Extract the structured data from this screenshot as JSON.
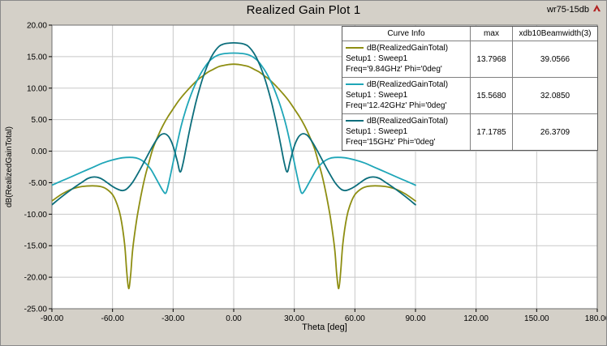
{
  "header": {
    "project_label": "wr75-15db"
  },
  "legend": {
    "curve_info_header": "Curve Info",
    "max_header": "max",
    "beamwidth_header": "xdb10Beamwidth(3)"
  },
  "chart_data": {
    "type": "line",
    "title": "Realized Gain Plot 1",
    "xlabel": "Theta [deg]",
    "ylabel": "dB(RealizedGainTotal)",
    "xlim": [
      -90,
      180
    ],
    "ylim": [
      -25,
      20
    ],
    "grid": true,
    "legend_position": "top-right",
    "x_ticks": [
      -90,
      -60,
      -30,
      0,
      30,
      60,
      90,
      120,
      150,
      180
    ],
    "x_tick_labels": [
      "-90.00",
      "-60.00",
      "-30.00",
      "0.00",
      "30.00",
      "60.00",
      "90.00",
      "120.00",
      "150.00",
      "180.00"
    ],
    "y_ticks": [
      20,
      15,
      10,
      5,
      0,
      -5,
      -10,
      -15,
      -20,
      -25
    ],
    "y_tick_labels": [
      "20.00",
      "15.00",
      "10.00",
      "5.00",
      "0.00",
      "-5.00",
      "-10.00",
      "-15.00",
      "-20.00",
      "-25.00"
    ],
    "colors": {
      "plot_bg": "#ffffff",
      "grid": "#c8c8c8",
      "frame_bg": "#d4d0c8",
      "axis": "#6e6e6e"
    },
    "series": [
      {
        "name": "dB(RealizedGainTotal)",
        "setup": "Setup1 : Sweep1",
        "freq": "Freq='9.84GHz' Phi='0deg'",
        "max": "13.7968",
        "beamwidth": "39.0566",
        "color": "#8e8e12",
        "mirror": true,
        "points": [
          [
            0,
            13.8
          ],
          [
            2.5,
            13.75
          ],
          [
            5,
            13.6
          ],
          [
            7.5,
            13.4
          ],
          [
            10,
            13.0
          ],
          [
            12.5,
            12.6
          ],
          [
            15,
            12.0
          ],
          [
            17.5,
            11.4
          ],
          [
            20,
            10.65
          ],
          [
            22.5,
            9.8
          ],
          [
            25,
            8.9
          ],
          [
            27.5,
            7.9
          ],
          [
            30,
            6.7
          ],
          [
            32.5,
            5.5
          ],
          [
            35,
            4.1
          ],
          [
            37.5,
            2.4
          ],
          [
            40,
            0.4
          ],
          [
            42,
            -1.8
          ],
          [
            44,
            -4.2
          ],
          [
            46,
            -7.2
          ],
          [
            48,
            -10.8
          ],
          [
            50,
            -15.5
          ],
          [
            51,
            -19.5
          ],
          [
            52,
            -21.8
          ],
          [
            53,
            -19.0
          ],
          [
            54,
            -14.8
          ],
          [
            56,
            -10.4
          ],
          [
            58,
            -8.2
          ],
          [
            60,
            -6.9
          ],
          [
            63,
            -6.0
          ],
          [
            66,
            -5.6
          ],
          [
            70,
            -5.5
          ],
          [
            75,
            -5.6
          ],
          [
            80,
            -6.0
          ],
          [
            85,
            -6.8
          ],
          [
            90,
            -7.9
          ]
        ]
      },
      {
        "name": "dB(RealizedGainTotal)",
        "setup": "Setup1 : Sweep1",
        "freq": "Freq='12.42GHz' Phi='0deg'",
        "max": "15.5680",
        "beamwidth": "32.0850",
        "color": "#1fa6b8",
        "mirror": true,
        "points": [
          [
            0,
            15.57
          ],
          [
            2,
            15.55
          ],
          [
            4,
            15.5
          ],
          [
            6,
            15.4
          ],
          [
            8,
            15.2
          ],
          [
            10,
            14.85
          ],
          [
            12,
            14.3
          ],
          [
            14,
            13.5
          ],
          [
            16,
            12.5
          ],
          [
            18,
            11.3
          ],
          [
            20,
            9.9
          ],
          [
            22,
            8.2
          ],
          [
            24,
            6.3
          ],
          [
            26,
            4.0
          ],
          [
            28,
            1.2
          ],
          [
            30,
            -1.8
          ],
          [
            32,
            -4.8
          ],
          [
            33.5,
            -6.6
          ],
          [
            35,
            -6.3
          ],
          [
            38,
            -4.6
          ],
          [
            41,
            -2.9
          ],
          [
            44,
            -1.8
          ],
          [
            47,
            -1.2
          ],
          [
            50,
            -1.0
          ],
          [
            55,
            -1.05
          ],
          [
            60,
            -1.4
          ],
          [
            65,
            -1.9
          ],
          [
            70,
            -2.6
          ],
          [
            75,
            -3.3
          ],
          [
            80,
            -4.0
          ],
          [
            85,
            -4.7
          ],
          [
            90,
            -5.4
          ]
        ]
      },
      {
        "name": "dB(RealizedGainTotal)",
        "setup": "Setup1 : Sweep1",
        "freq": "Freq='15GHz' Phi='0deg'",
        "max": "17.1785",
        "beamwidth": "26.3709",
        "color": "#0c6e7c",
        "mirror": true,
        "points": [
          [
            0,
            17.18
          ],
          [
            3,
            17.12
          ],
          [
            5,
            17.0
          ],
          [
            7,
            16.7
          ],
          [
            9,
            16.0
          ],
          [
            11,
            15.0
          ],
          [
            13,
            13.6
          ],
          [
            15,
            11.9
          ],
          [
            17,
            9.8
          ],
          [
            19,
            7.4
          ],
          [
            21,
            4.6
          ],
          [
            23,
            1.5
          ],
          [
            25,
            -1.8
          ],
          [
            26.5,
            -3.3
          ],
          [
            28,
            -1.5
          ],
          [
            30,
            0.8
          ],
          [
            32,
            2.2
          ],
          [
            34,
            2.75
          ],
          [
            36,
            2.6
          ],
          [
            38,
            1.9
          ],
          [
            41,
            0.3
          ],
          [
            44,
            -1.5
          ],
          [
            47,
            -3.3
          ],
          [
            50,
            -4.9
          ],
          [
            53,
            -6.0
          ],
          [
            55,
            -6.25
          ],
          [
            57,
            -6.1
          ],
          [
            60,
            -5.6
          ],
          [
            63,
            -4.9
          ],
          [
            66,
            -4.3
          ],
          [
            69,
            -4.1
          ],
          [
            72,
            -4.3
          ],
          [
            75,
            -4.9
          ],
          [
            80,
            -6.0
          ],
          [
            85,
            -7.2
          ],
          [
            90,
            -8.5
          ]
        ]
      }
    ]
  }
}
